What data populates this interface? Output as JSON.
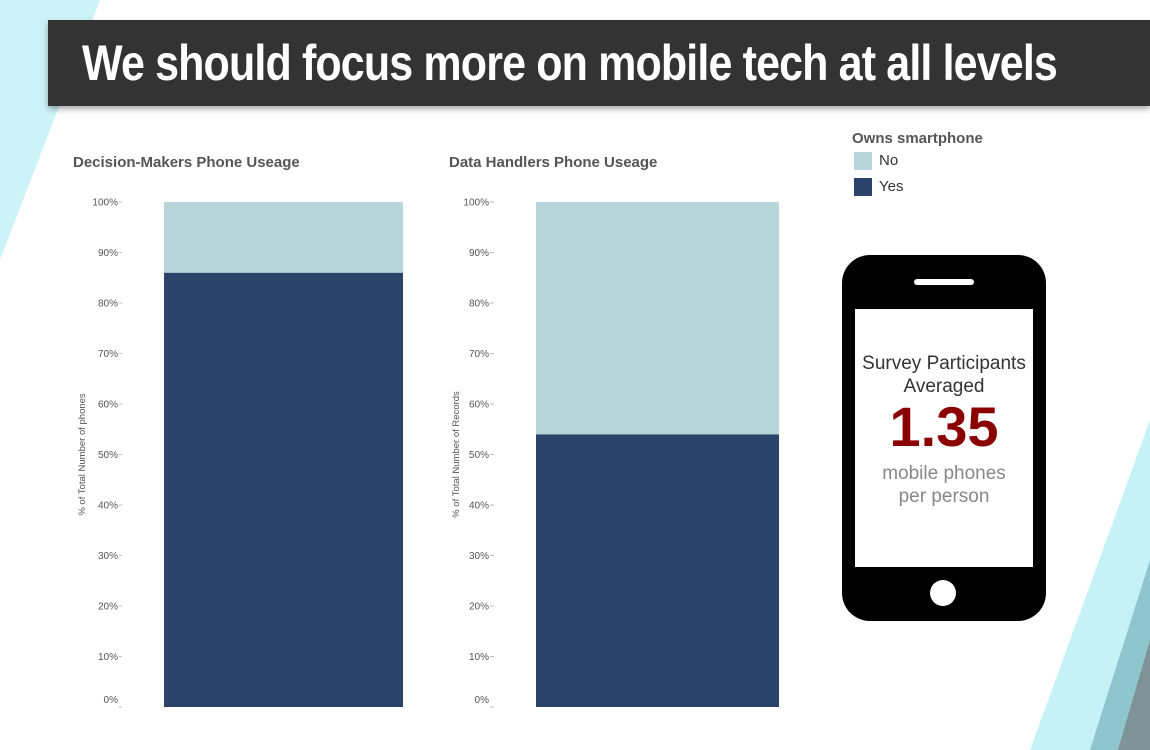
{
  "page": {
    "title": "We should focus more on mobile tech at all levels"
  },
  "legend": {
    "title": "Owns smartphone",
    "items": [
      {
        "label": "No",
        "color": "#b7d5da"
      },
      {
        "label": "Yes",
        "color": "#2a446b"
      }
    ]
  },
  "callout": {
    "line1": "Survey Participants",
    "line2": "Averaged",
    "value": "1.35",
    "line3": "mobile phones",
    "line4": "per person",
    "value_color": "#8b0000",
    "icon": "smartphone-icon"
  },
  "chart_data": [
    {
      "type": "bar",
      "stacked": true,
      "title": "Decision-Makers Phone Useage",
      "ylabel": "% of Total Number of phones",
      "ylim": [
        0,
        100
      ],
      "yticks": [
        "0%",
        "10%",
        "20%",
        "30%",
        "40%",
        "50%",
        "60%",
        "70%",
        "80%",
        "90%",
        "100%"
      ],
      "categories": [
        ""
      ],
      "series": [
        {
          "name": "Yes",
          "values": [
            86
          ],
          "color": "#2a446b"
        },
        {
          "name": "No",
          "values": [
            14
          ],
          "color": "#b7d5da"
        }
      ],
      "grid": false
    },
    {
      "type": "bar",
      "stacked": true,
      "title": "Data Handlers Phone Useage",
      "ylabel": "% of Total Number of Records",
      "ylim": [
        0,
        100
      ],
      "yticks": [
        "0%",
        "10%",
        "20%",
        "30%",
        "40%",
        "50%",
        "60%",
        "70%",
        "80%",
        "90%",
        "100%"
      ],
      "categories": [
        ""
      ],
      "series": [
        {
          "name": "Yes",
          "values": [
            54
          ],
          "color": "#2a446b"
        },
        {
          "name": "No",
          "values": [
            46
          ],
          "color": "#b7d5da"
        }
      ],
      "grid": false
    }
  ]
}
